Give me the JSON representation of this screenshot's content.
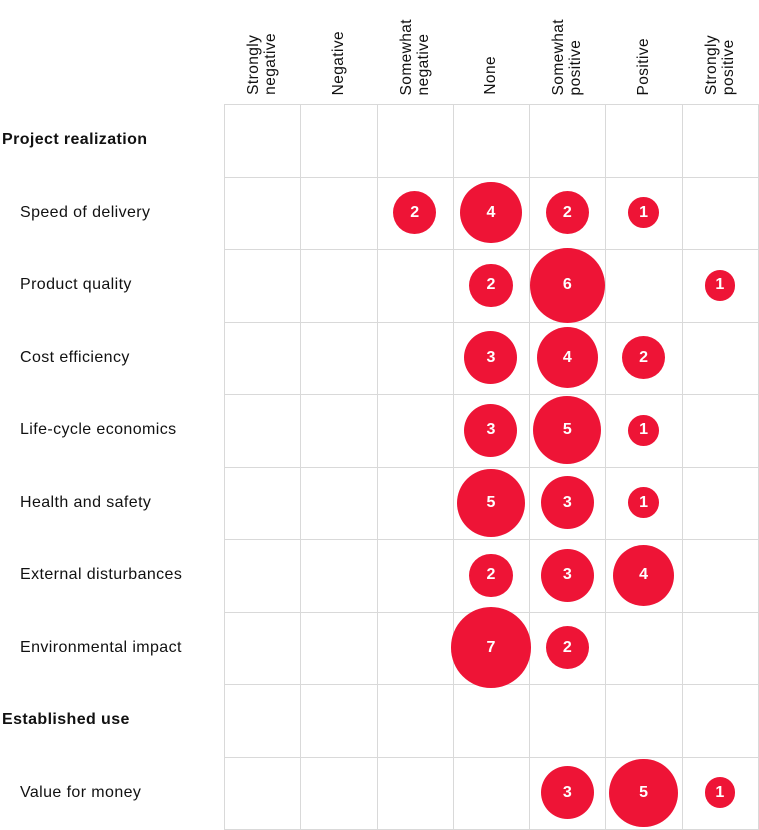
{
  "chart_data": {
    "type": "bubble-matrix",
    "title": "",
    "columns": [
      "Strongly negative",
      "Negative",
      "Somewhat negative",
      "None",
      "Somewhat positive",
      "Positive",
      "Strongly positive"
    ],
    "rows": [
      {
        "label": "Project realization",
        "section": true,
        "values": [
          null,
          null,
          null,
          null,
          null,
          null,
          null
        ]
      },
      {
        "label": "Speed of delivery",
        "section": false,
        "values": [
          null,
          null,
          2,
          4,
          2,
          1,
          null
        ]
      },
      {
        "label": "Product quality",
        "section": false,
        "values": [
          null,
          null,
          null,
          2,
          6,
          null,
          1
        ]
      },
      {
        "label": "Cost efficiency",
        "section": false,
        "values": [
          null,
          null,
          null,
          3,
          4,
          2,
          null
        ]
      },
      {
        "label": "Life-cycle economics",
        "section": false,
        "values": [
          null,
          null,
          null,
          3,
          5,
          1,
          null
        ]
      },
      {
        "label": "Health and safety",
        "section": false,
        "values": [
          null,
          null,
          null,
          5,
          3,
          1,
          null
        ]
      },
      {
        "label": "External disturbances",
        "section": false,
        "values": [
          null,
          null,
          null,
          2,
          3,
          4,
          null
        ]
      },
      {
        "label": "Environmental impact",
        "section": false,
        "values": [
          null,
          null,
          null,
          7,
          2,
          null,
          null
        ]
      },
      {
        "label": "Established use",
        "section": true,
        "values": [
          null,
          null,
          null,
          null,
          null,
          null,
          null
        ]
      },
      {
        "label": "Value for money",
        "section": false,
        "values": [
          null,
          null,
          null,
          null,
          3,
          5,
          1
        ]
      }
    ],
    "bubble_sizing": "area_proportional_to_value",
    "bubble_color": "#ee1436",
    "bubble_label_color": "#ffffff",
    "grid_color": "#d9d9d9",
    "text_color": "#111111",
    "grid_on": true,
    "legend": "none"
  }
}
